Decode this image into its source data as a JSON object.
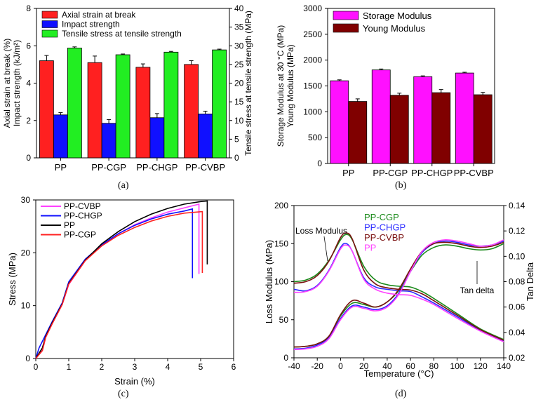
{
  "captions": {
    "a": "(a)",
    "b": "(b)",
    "c": "(c)",
    "d": "(d)"
  },
  "colors": {
    "red": "#ff2020",
    "blue": "#1010ff",
    "green": "#22ee22",
    "magenta": "#ff10ff",
    "maroon": "#800000",
    "black": "#000000",
    "dgreen": "#1a8a1a",
    "lblue": "#2a2aff",
    "dmaroon": "#7a1010",
    "pink": "#ff40ff"
  },
  "chart_data": [
    {
      "id": "a",
      "type": "bar",
      "categories": [
        "PP",
        "PP-CGP",
        "PP-CHGP",
        "PP-CVBP"
      ],
      "ylabel_left": [
        "Axial strain at break (%)",
        "Impact strength (kJ/m²)"
      ],
      "ylabel_right": "Tensile stress at tensile strength (MPa)",
      "ylim_left": [
        0,
        8
      ],
      "yticks_left": [
        "0",
        "2",
        "4",
        "6",
        "8"
      ],
      "ylim_right": [
        0,
        40
      ],
      "yticks_right": [
        "0",
        "5",
        "10",
        "15",
        "20",
        "25",
        "30",
        "35",
        "40"
      ],
      "legend_position": "top-left",
      "series": [
        {
          "name": "Axial strain at break",
          "axis": "left",
          "color": "#ff2020",
          "values": [
            5.2,
            5.1,
            4.85,
            5.0
          ],
          "errors": [
            0.28,
            0.35,
            0.18,
            0.2
          ]
        },
        {
          "name": "Impact strength",
          "axis": "left",
          "color": "#1010ff",
          "values": [
            2.3,
            1.85,
            2.15,
            2.35
          ],
          "errors": [
            0.12,
            0.2,
            0.22,
            0.15
          ]
        },
        {
          "name": "Tensile stress at tensile strength",
          "axis": "right",
          "color": "#22ee22",
          "values": [
            29.4,
            27.6,
            28.3,
            28.9
          ],
          "errors": [
            0.3,
            0.2,
            0.2,
            0.2
          ]
        }
      ]
    },
    {
      "id": "b",
      "type": "bar",
      "categories": [
        "PP",
        "PP-CGP",
        "PP-CHGP",
        "PP-CVBP"
      ],
      "ylabel": [
        "Storage Modulus at 30 °C (MPa)",
        "Young Modulus (MPa)"
      ],
      "ylim": [
        0,
        3000
      ],
      "yticks": [
        "0",
        "500",
        "1000",
        "1500",
        "2000",
        "2500",
        "3000"
      ],
      "legend_position": "top-left",
      "series": [
        {
          "name": "Storage Modulus",
          "color": "#ff10ff",
          "values": [
            1600,
            1810,
            1680,
            1750
          ],
          "errors": [
            18,
            18,
            15,
            15
          ]
        },
        {
          "name": "Young Modulus",
          "color": "#800000",
          "values": [
            1200,
            1320,
            1370,
            1330
          ],
          "errors": [
            50,
            40,
            60,
            45
          ]
        }
      ]
    },
    {
      "id": "c",
      "type": "line",
      "xlabel": "Strain (%)",
      "ylabel": "Stress (MPa)",
      "xlim": [
        0,
        6
      ],
      "xticks": [
        "0",
        "1",
        "2",
        "3",
        "4",
        "5",
        "6"
      ],
      "ylim": [
        0,
        30
      ],
      "yticks": [
        "0",
        "10",
        "20",
        "30"
      ],
      "legend_position": "top-left",
      "series": [
        {
          "name": "PP-CVBP",
          "color": "#ff40ff",
          "points": [
            [
              0,
              0
            ],
            [
              0.2,
              1.5
            ],
            [
              0.3,
              4
            ],
            [
              0.5,
              6.6
            ],
            [
              0.8,
              10.2
            ],
            [
              1.0,
              14
            ],
            [
              1.5,
              18.5
            ],
            [
              2,
              21.4
            ],
            [
              2.5,
              23.6
            ],
            [
              3,
              25.3
            ],
            [
              3.5,
              26.6
            ],
            [
              4,
              27.7
            ],
            [
              4.5,
              28.5
            ],
            [
              4.95,
              29.2
            ],
            [
              4.95,
              16
            ]
          ]
        },
        {
          "name": "PP-CHGP",
          "color": "#1010ff",
          "points": [
            [
              0,
              0
            ],
            [
              0.1,
              2
            ],
            [
              0.3,
              4.5
            ],
            [
              0.5,
              7
            ],
            [
              0.8,
              10.5
            ],
            [
              1.0,
              14.5
            ],
            [
              1.5,
              18.8
            ],
            [
              2,
              21.5
            ],
            [
              2.5,
              23.6
            ],
            [
              3,
              25.2
            ],
            [
              3.5,
              26.4
            ],
            [
              4,
              27.3
            ],
            [
              4.5,
              27.9
            ],
            [
              4.75,
              28.3
            ],
            [
              4.75,
              15.2
            ]
          ]
        },
        {
          "name": "PP",
          "color": "#000000",
          "points": [
            [
              0,
              0
            ],
            [
              0.2,
              2
            ],
            [
              0.3,
              4.2
            ],
            [
              0.5,
              6.8
            ],
            [
              0.8,
              10.3
            ],
            [
              1.0,
              14.2
            ],
            [
              1.5,
              18.6
            ],
            [
              2,
              21.7
            ],
            [
              2.5,
              24
            ],
            [
              3,
              25.9
            ],
            [
              3.5,
              27.3
            ],
            [
              4,
              28.4
            ],
            [
              4.5,
              29.2
            ],
            [
              5,
              29.7
            ],
            [
              5.2,
              29.8
            ],
            [
              5.2,
              17.8
            ]
          ]
        },
        {
          "name": "PP-CGP",
          "color": "#ff2020",
          "points": [
            [
              0,
              0
            ],
            [
              0.2,
              1.5
            ],
            [
              0.3,
              4
            ],
            [
              0.5,
              6.6
            ],
            [
              0.8,
              10.2
            ],
            [
              1.0,
              14.1
            ],
            [
              1.5,
              18.5
            ],
            [
              2,
              21.3
            ],
            [
              2.5,
              23.3
            ],
            [
              3,
              24.8
            ],
            [
              3.5,
              26
            ],
            [
              4,
              26.9
            ],
            [
              4.5,
              27.5
            ],
            [
              5.05,
              27.8
            ],
            [
              5.05,
              16.2
            ]
          ]
        }
      ]
    },
    {
      "id": "d",
      "type": "line",
      "xlabel": "Temperature (°C)",
      "ylabel_left": "Loss Modulus (MPa)",
      "ylabel_right": "Tan Delta",
      "xlim": [
        -40,
        140
      ],
      "xticks": [
        "-40",
        "-20",
        "0",
        "20",
        "40",
        "60",
        "80",
        "100",
        "120",
        "140"
      ],
      "ylim_left": [
        0,
        200
      ],
      "yticks_left": [
        "0",
        "50",
        "100",
        "150",
        "200"
      ],
      "ylim_right": [
        0.02,
        0.14
      ],
      "yticks_right": [
        "0.02",
        "0.04",
        "0.06",
        "0.08",
        "0.10",
        "0.12",
        "0.14"
      ],
      "annotations": [
        "Loss Modulus",
        "Tan delta"
      ],
      "legend_position": "top-center",
      "series": [
        {
          "name": "PP-CGP",
          "color": "#1a8a1a",
          "loss_modulus": [
            [
              -40,
              100
            ],
            [
              -30,
              102
            ],
            [
              -20,
              110
            ],
            [
              -10,
              128
            ],
            [
              0,
              155
            ],
            [
              5,
              162
            ],
            [
              10,
              155
            ],
            [
              20,
              120
            ],
            [
              30,
              102
            ],
            [
              40,
              96
            ],
            [
              50,
              94
            ],
            [
              60,
              93
            ],
            [
              70,
              87
            ],
            [
              80,
              78
            ],
            [
              100,
              58
            ],
            [
              120,
              38
            ],
            [
              140,
              24
            ]
          ],
          "tan_delta": [
            [
              -40,
              0.0285
            ],
            [
              -30,
              0.029
            ],
            [
              -20,
              0.031
            ],
            [
              -10,
              0.037
            ],
            [
              0,
              0.053
            ],
            [
              10,
              0.063
            ],
            [
              20,
              0.062
            ],
            [
              30,
              0.06
            ],
            [
              40,
              0.064
            ],
            [
              50,
              0.073
            ],
            [
              60,
              0.088
            ],
            [
              70,
              0.101
            ],
            [
              80,
              0.107
            ],
            [
              90,
              0.109
            ],
            [
              100,
              0.108
            ],
            [
              110,
              0.106
            ],
            [
              120,
              0.105
            ],
            [
              130,
              0.106
            ],
            [
              140,
              0.11
            ]
          ]
        },
        {
          "name": "PP-CHGP",
          "color": "#2a2aff",
          "loss_modulus": [
            [
              -40,
              90
            ],
            [
              -30,
              88
            ],
            [
              -20,
              95
            ],
            [
              -10,
              115
            ],
            [
              0,
              145
            ],
            [
              5,
              150
            ],
            [
              10,
              140
            ],
            [
              20,
              105
            ],
            [
              30,
              93
            ],
            [
              40,
              90
            ],
            [
              50,
              88
            ],
            [
              60,
              87
            ],
            [
              70,
              80
            ],
            [
              80,
              72
            ],
            [
              100,
              54
            ],
            [
              120,
              36
            ],
            [
              140,
              22
            ]
          ],
          "tan_delta": [
            [
              -40,
              0.027
            ],
            [
              -30,
              0.0275
            ],
            [
              -20,
              0.03
            ],
            [
              -10,
              0.036
            ],
            [
              0,
              0.051
            ],
            [
              10,
              0.061
            ],
            [
              20,
              0.06
            ],
            [
              30,
              0.058
            ],
            [
              40,
              0.061
            ],
            [
              50,
              0.071
            ],
            [
              60,
              0.088
            ],
            [
              70,
              0.103
            ],
            [
              80,
              0.11
            ],
            [
              90,
              0.112
            ],
            [
              100,
              0.111
            ],
            [
              110,
              0.109
            ],
            [
              120,
              0.108
            ],
            [
              130,
              0.109
            ],
            [
              140,
              0.112
            ]
          ]
        },
        {
          "name": "PP-CVBP",
          "color": "#7a1010",
          "loss_modulus": [
            [
              -40,
              98
            ],
            [
              -30,
              100
            ],
            [
              -20,
              108
            ],
            [
              -10,
              127
            ],
            [
              0,
              158
            ],
            [
              5,
              164
            ],
            [
              10,
              156
            ],
            [
              20,
              115
            ],
            [
              30,
              97
            ],
            [
              40,
              92
            ],
            [
              50,
              90
            ],
            [
              60,
              89
            ],
            [
              70,
              84
            ],
            [
              80,
              75
            ],
            [
              100,
              56
            ],
            [
              120,
              37
            ],
            [
              140,
              23
            ]
          ],
          "tan_delta": [
            [
              -40,
              0.0285
            ],
            [
              -30,
              0.029
            ],
            [
              -20,
              0.031
            ],
            [
              -10,
              0.037
            ],
            [
              0,
              0.054
            ],
            [
              10,
              0.065
            ],
            [
              20,
              0.063
            ],
            [
              30,
              0.06
            ],
            [
              40,
              0.064
            ],
            [
              50,
              0.074
            ],
            [
              60,
              0.09
            ],
            [
              70,
              0.104
            ],
            [
              80,
              0.11
            ],
            [
              90,
              0.111
            ],
            [
              100,
              0.11
            ],
            [
              110,
              0.108
            ],
            [
              120,
              0.107
            ],
            [
              130,
              0.108
            ],
            [
              140,
              0.111
            ]
          ]
        },
        {
          "name": "PP",
          "color": "#ff40ff",
          "loss_modulus": [
            [
              -40,
              86
            ],
            [
              -30,
              87
            ],
            [
              -20,
              94
            ],
            [
              -10,
              114
            ],
            [
              0,
              143
            ],
            [
              5,
              148
            ],
            [
              10,
              140
            ],
            [
              20,
              103
            ],
            [
              30,
              90
            ],
            [
              40,
              85
            ],
            [
              50,
              83
            ],
            [
              60,
              82
            ],
            [
              70,
              77
            ],
            [
              80,
              70
            ],
            [
              100,
              52
            ],
            [
              120,
              35
            ],
            [
              140,
              21
            ]
          ],
          "tan_delta": [
            [
              -40,
              0.0265
            ],
            [
              -30,
              0.027
            ],
            [
              -20,
              0.029
            ],
            [
              -10,
              0.035
            ],
            [
              0,
              0.05
            ],
            [
              10,
              0.06
            ],
            [
              20,
              0.059
            ],
            [
              30,
              0.057
            ],
            [
              40,
              0.06
            ],
            [
              50,
              0.07
            ],
            [
              60,
              0.088
            ],
            [
              70,
              0.104
            ],
            [
              80,
              0.111
            ],
            [
              90,
              0.113
            ],
            [
              100,
              0.112
            ],
            [
              110,
              0.11
            ],
            [
              120,
              0.108
            ],
            [
              130,
              0.109
            ],
            [
              140,
              0.113
            ]
          ]
        }
      ]
    }
  ]
}
